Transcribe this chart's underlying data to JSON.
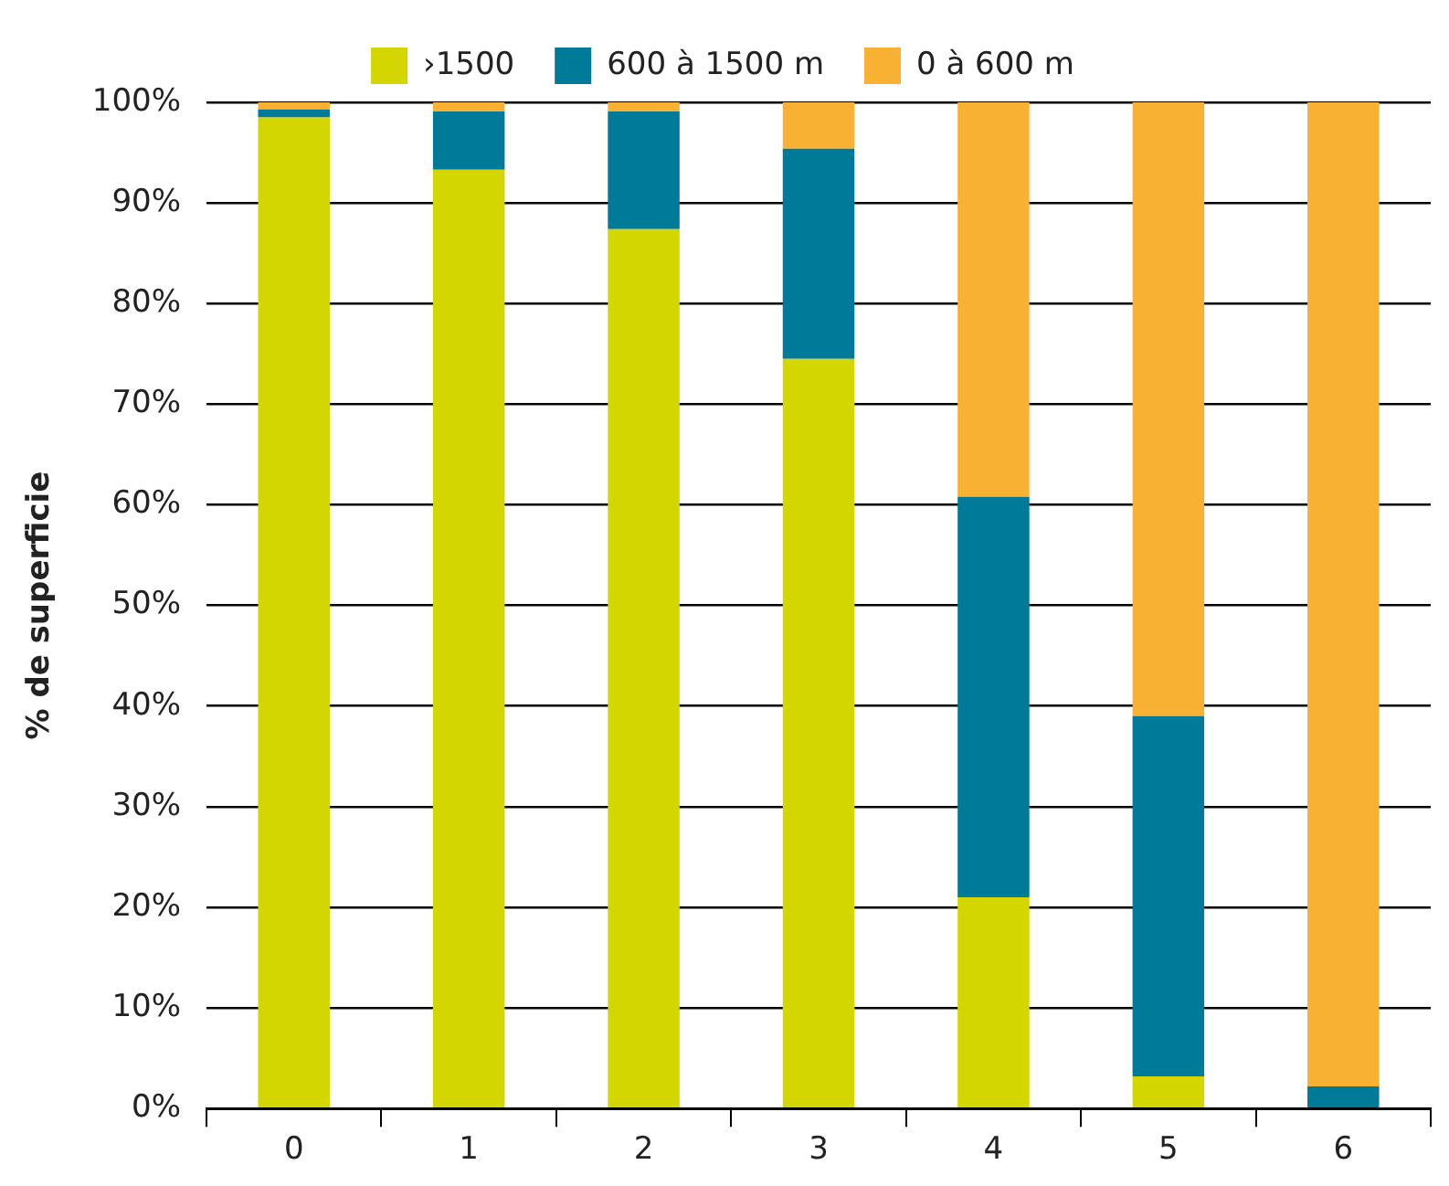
{
  "chart_data": {
    "type": "bar",
    "stacked": true,
    "ylabel": "% de superficie",
    "categories": [
      "0",
      "1",
      "2",
      "3",
      "4",
      "5",
      "6"
    ],
    "series": [
      {
        "name": "›1500",
        "color": "#d4d600",
        "values": [
          98.5,
          93.3,
          87.4,
          74.5,
          21.0,
          3.2,
          0
        ]
      },
      {
        "name": "600 à 1500 m",
        "color": "#007a99",
        "values": [
          0.8,
          5.8,
          11.7,
          20.9,
          39.8,
          35.8,
          2.2
        ]
      },
      {
        "name": "0 à 600 m",
        "color": "#f8b133",
        "values": [
          0.7,
          0.9,
          0.9,
          4.6,
          39.2,
          61.0,
          97.8
        ]
      }
    ],
    "ylim": [
      0,
      100
    ],
    "yticks": [
      {
        "value": 0,
        "label": "0%"
      },
      {
        "value": 10,
        "label": "10%"
      },
      {
        "value": 20,
        "label": "20%"
      },
      {
        "value": 30,
        "label": "30%"
      },
      {
        "value": 40,
        "label": "40%"
      },
      {
        "value": 50,
        "label": "50%"
      },
      {
        "value": 60,
        "label": "60%"
      },
      {
        "value": 70,
        "label": "70%"
      },
      {
        "value": 80,
        "label": "80%"
      },
      {
        "value": 90,
        "label": "90%"
      },
      {
        "value": 100,
        "label": "100%"
      }
    ],
    "grid": "y",
    "legend": "top"
  }
}
